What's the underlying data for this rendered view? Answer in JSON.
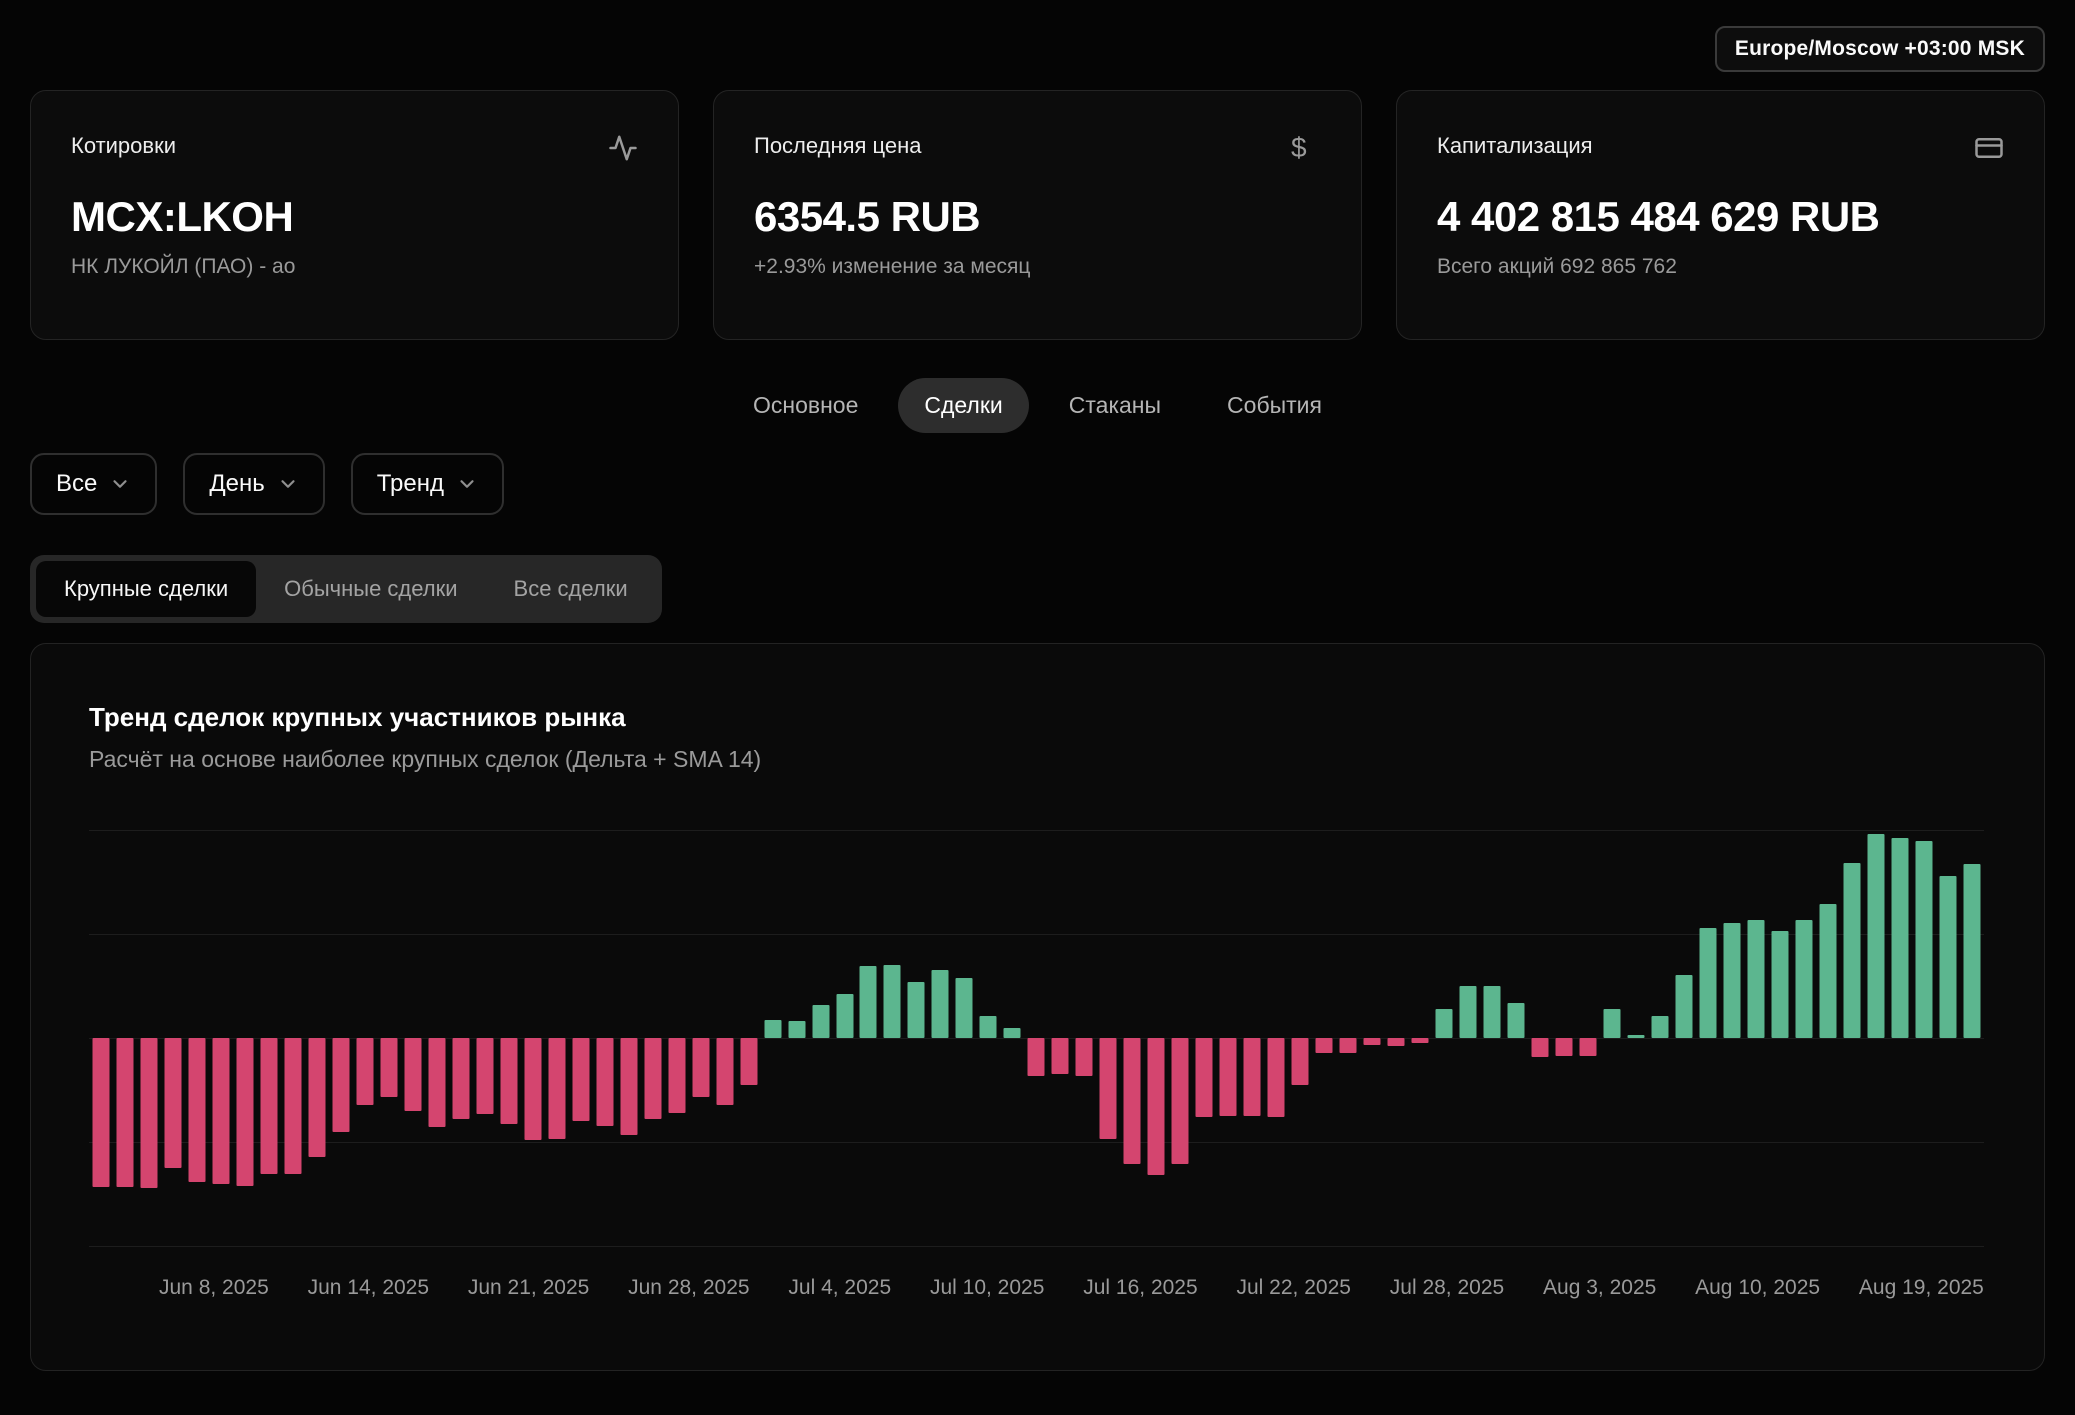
{
  "header": {
    "timezone_badge": "Europe/Moscow +03:00 MSK"
  },
  "cards": {
    "quotes": {
      "label": "Котировки",
      "value": "MCX:LKOH",
      "subtitle": "НК ЛУКОЙЛ (ПАО) - ао",
      "icon": "activity-icon"
    },
    "last_price": {
      "label": "Последняя цена",
      "value": "6354.5 RUB",
      "subtitle": "+2.93% изменение за месяц",
      "icon": "dollar-icon"
    },
    "market_cap": {
      "label": "Капитализация",
      "value": "4 402 815 484 629 RUB",
      "subtitle": "Всего акций 692 865 762",
      "icon": "credit-card-icon"
    }
  },
  "tabs": [
    {
      "id": "osnovnoe",
      "label": "Основное",
      "active": false
    },
    {
      "id": "sdelki",
      "label": "Сделки",
      "active": true
    },
    {
      "id": "stakany",
      "label": "Стаканы",
      "active": false
    },
    {
      "id": "sobytiya",
      "label": "События",
      "active": false
    }
  ],
  "filters": [
    {
      "id": "scope",
      "label": "Все"
    },
    {
      "id": "period",
      "label": "День"
    },
    {
      "id": "view",
      "label": "Тренд"
    }
  ],
  "segments": [
    {
      "id": "large",
      "label": "Крупные сделки",
      "active": true
    },
    {
      "id": "normal",
      "label": "Обычные сделки",
      "active": false
    },
    {
      "id": "all",
      "label": "Все сделки",
      "active": false
    }
  ],
  "chart_data": {
    "type": "bar",
    "title": "Тренд сделок крупных участников рынка",
    "subtitle": "Расчёт на основе наиболее крупных сделок (Дельта + SMA 14)",
    "legend": "none",
    "grid": "horizontal",
    "ylim": [
      -2.15,
      2.15
    ],
    "gridline_levels": [
      2,
      1,
      0,
      -1,
      -2
    ],
    "positive_color": "#5cb68f",
    "negative_color": "#d4456f",
    "x_tick_labels": [
      "Jun 8, 2025",
      "Jun 14, 2025",
      "Jun 21, 2025",
      "Jun 28, 2025",
      "Jul 4, 2025",
      "Jul 10, 2025",
      "Jul 16, 2025",
      "Jul 22, 2025",
      "Jul 28, 2025",
      "Aug 3, 2025",
      "Aug 10, 2025",
      "Aug 19, 2025"
    ],
    "values": [
      -1.43,
      -1.43,
      -1.44,
      -1.25,
      -1.38,
      -1.4,
      -1.42,
      -1.31,
      -1.31,
      -1.14,
      -0.9,
      -0.64,
      -0.57,
      -0.7,
      -0.86,
      -0.78,
      -0.73,
      -0.83,
      -0.98,
      -0.97,
      -0.8,
      -0.85,
      -0.93,
      -0.78,
      -0.72,
      -0.57,
      -0.64,
      -0.45,
      0.17,
      0.16,
      0.32,
      0.42,
      0.69,
      0.7,
      0.54,
      0.65,
      0.58,
      0.21,
      0.1,
      -0.37,
      -0.35,
      -0.37,
      -0.97,
      -1.21,
      -1.32,
      -1.21,
      -0.76,
      -0.75,
      -0.75,
      -0.76,
      -0.45,
      -0.14,
      -0.14,
      -0.07,
      -0.08,
      -0.05,
      0.28,
      0.5,
      0.5,
      0.34,
      -0.18,
      -0.17,
      -0.17,
      0.28,
      0.03,
      0.21,
      0.61,
      1.06,
      1.11,
      1.13,
      1.03,
      1.13,
      1.29,
      1.68,
      1.96,
      1.92,
      1.89,
      1.56,
      1.67
    ]
  }
}
